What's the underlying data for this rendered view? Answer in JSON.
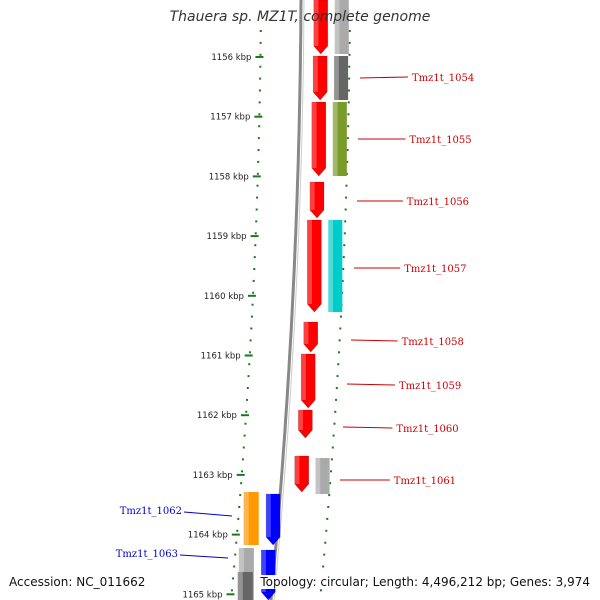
{
  "title": "Thauera sp. MZ1T, complete genome",
  "accession": "Accession: NC_011662",
  "summary": "Topology: circular; Length: 4,496,212 bp; Genes: 3,974",
  "scale": [
    {
      "label": "1156 kbp",
      "pos": 1156
    },
    {
      "label": "1157 kbp",
      "pos": 1157
    },
    {
      "label": "1158 kbp",
      "pos": 1158
    },
    {
      "label": "1159 kbp",
      "pos": 1159
    },
    {
      "label": "1160 kbp",
      "pos": 1160
    },
    {
      "label": "1161 kbp",
      "pos": 1161
    },
    {
      "label": "1162 kbp",
      "pos": 1162
    },
    {
      "label": "1163 kbp",
      "pos": 1163
    },
    {
      "label": "1164 kbp",
      "pos": 1164
    },
    {
      "label": "1165 kbp",
      "pos": 1165
    }
  ],
  "colors": {
    "cds": "#ff0000",
    "label_red": "#cc0000",
    "label_blue": "#0000cc",
    "tick": "#1a7a1a",
    "backbone": "#888888",
    "orange": "#ff9900",
    "blue": "#0000ff",
    "olive": "#7a9a2a",
    "cyan": "#00cccc",
    "grey": "#aaaaaa",
    "dark_grey": "#666666"
  },
  "genes": [
    {
      "label": "Tmz1t_1054",
      "color": "red"
    },
    {
      "label": "Tmz1t_1055",
      "color": "red"
    },
    {
      "label": "Tmz1t_1056",
      "color": "red"
    },
    {
      "label": "Tmz1t_1057",
      "color": "red"
    },
    {
      "label": "Tmz1t_1058",
      "color": "red"
    },
    {
      "label": "Tmz1t_1059",
      "color": "red"
    },
    {
      "label": "Tmz1t_1060",
      "color": "red"
    },
    {
      "label": "Tmz1t_1061",
      "color": "red"
    },
    {
      "label": "Tmz1t_1062",
      "color": "blue"
    },
    {
      "label": "Tmz1t_1063",
      "color": "blue"
    }
  ]
}
